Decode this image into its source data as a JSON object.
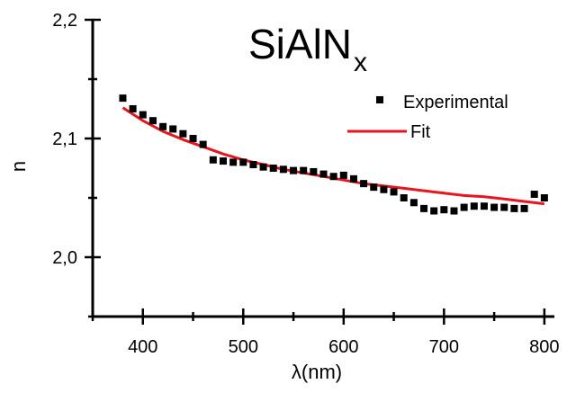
{
  "chart_data": {
    "type": "scatter",
    "title": "SiAlN",
    "title_subscript": "x",
    "xlabel": "λ(nm)",
    "ylabel": "n",
    "xlim": [
      350,
      810
    ],
    "ylim": [
      1.95,
      2.2
    ],
    "x_ticks": [
      400,
      500,
      600,
      700,
      800
    ],
    "x_tick_labels": [
      "400",
      "500",
      "600",
      "700",
      "800"
    ],
    "y_ticks": [
      2.0,
      2.1,
      2.2
    ],
    "y_tick_labels": [
      "2,0",
      "2,1",
      "2,2"
    ],
    "grid": false,
    "legend_position": "top-right",
    "series": [
      {
        "name": "Experimental",
        "kind": "scatter",
        "marker": "square",
        "color": "#000000",
        "x": [
          380,
          390,
          400,
          410,
          420,
          430,
          440,
          450,
          460,
          470,
          480,
          490,
          500,
          510,
          520,
          530,
          540,
          550,
          560,
          570,
          580,
          590,
          600,
          610,
          620,
          630,
          640,
          650,
          660,
          670,
          680,
          690,
          700,
          710,
          720,
          730,
          740,
          750,
          760,
          770,
          780,
          790,
          800
        ],
        "y": [
          2.134,
          2.125,
          2.12,
          2.115,
          2.11,
          2.108,
          2.104,
          2.1,
          2.095,
          2.082,
          2.081,
          2.08,
          2.08,
          2.078,
          2.076,
          2.075,
          2.074,
          2.073,
          2.073,
          2.072,
          2.07,
          2.068,
          2.069,
          2.066,
          2.062,
          2.059,
          2.057,
          2.055,
          2.05,
          2.046,
          2.041,
          2.039,
          2.04,
          2.039,
          2.042,
          2.043,
          2.043,
          2.042,
          2.042,
          2.041,
          2.041,
          2.053,
          2.05
        ]
      },
      {
        "name": "Fit",
        "kind": "line",
        "color": "#e8141e",
        "x": [
          380,
          400,
          420,
          440,
          460,
          480,
          500,
          520,
          540,
          560,
          580,
          600,
          620,
          640,
          660,
          680,
          700,
          720,
          740,
          760,
          780,
          800
        ],
        "y": [
          2.126,
          2.115,
          2.106,
          2.099,
          2.093,
          2.087,
          2.082,
          2.078,
          2.074,
          2.071,
          2.068,
          2.065,
          2.062,
          2.06,
          2.058,
          2.056,
          2.054,
          2.052,
          2.051,
          2.049,
          2.047,
          2.045
        ]
      }
    ]
  }
}
